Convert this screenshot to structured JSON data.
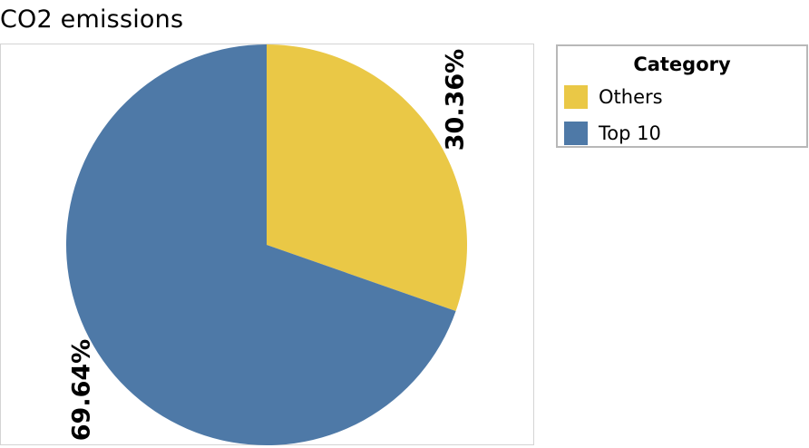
{
  "chart_data": {
    "type": "pie",
    "title": "CO2 emissions",
    "legend_title": "Category",
    "legend_position": "right",
    "slices": [
      {
        "name": "Others",
        "value": 30.36,
        "label": "30.36%",
        "color": "#EAC846"
      },
      {
        "name": "Top 10",
        "value": 69.64,
        "label": "69.64%",
        "color": "#4E79A7"
      }
    ]
  }
}
